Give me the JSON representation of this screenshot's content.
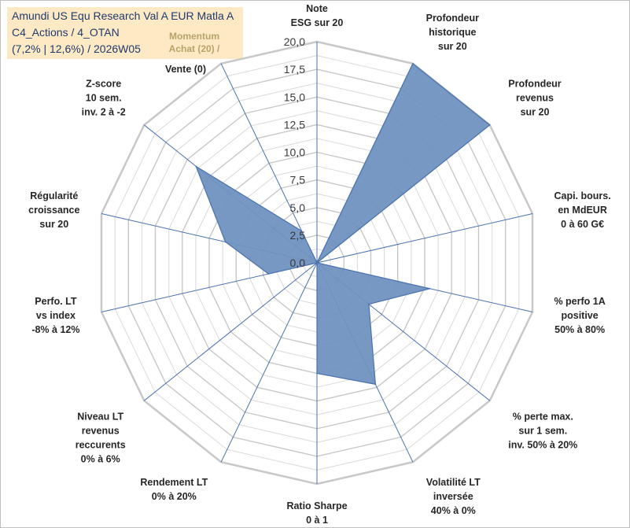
{
  "title": {
    "line1": "Amundi US Equ Research Val A EUR Matla A",
    "line2": "C4_Actions / 4_OTAN",
    "line3": "(7,2% | 12,6%) / 2026W05"
  },
  "chart_data": {
    "type": "radar",
    "r_min": 0,
    "r_max": 20,
    "tick_step": 2.5,
    "tick_labels": [
      "0,0",
      "2,5",
      "5,0",
      "7,5",
      "10,0",
      "12,5",
      "15,0",
      "17,5",
      "20,0"
    ],
    "fill_color": "#6f92bf",
    "line_color": "#4a72b0",
    "grid_color": "#d0d0d0",
    "axes": [
      {
        "label": [
          "Note",
          "ESG sur 20"
        ],
        "value": 0
      },
      {
        "label": [
          "Profondeur",
          "historique",
          "sur 20"
        ],
        "value": 20
      },
      {
        "label": [
          "Profondeur",
          "revenus",
          "sur 20"
        ],
        "value": 20
      },
      {
        "label": [
          "Capi. bours.",
          "en MdEUR",
          "0 à 60 G€"
        ],
        "value": 0
      },
      {
        "label": [
          "% perfo 1A",
          "positive",
          "50% à 80%"
        ],
        "value": 10.5
      },
      {
        "label": [
          "% perte max.",
          "sur 1 sem.",
          "inv. 50% à 20%"
        ],
        "value": 6.0
      },
      {
        "label": [
          "Volatilité LT",
          "inversée",
          "40% à 0%"
        ],
        "value": 12.2
      },
      {
        "label": [
          "Ratio Sharpe",
          "0 à 1"
        ],
        "value": 10.0
      },
      {
        "label": [
          "Rendement LT",
          "0% à 20%"
        ],
        "value": 0
      },
      {
        "label": [
          "Niveau LT",
          "revenus",
          "reccurents",
          "0% à 6%"
        ],
        "value": 0
      },
      {
        "label": [
          "Perfo. LT",
          "vs index",
          "-8% à 12%"
        ],
        "value": 4.5
      },
      {
        "label": [
          "Régularité",
          "croissance",
          "sur 20"
        ],
        "value": 8.5
      },
      {
        "label": [
          "Z-score",
          "10 sem.",
          "inv. 2 à -2"
        ],
        "value": 14.0
      },
      {
        "label": [
          "Momentum",
          "Achat (20) /",
          "Vente (0)"
        ],
        "value": 3.2
      }
    ]
  }
}
